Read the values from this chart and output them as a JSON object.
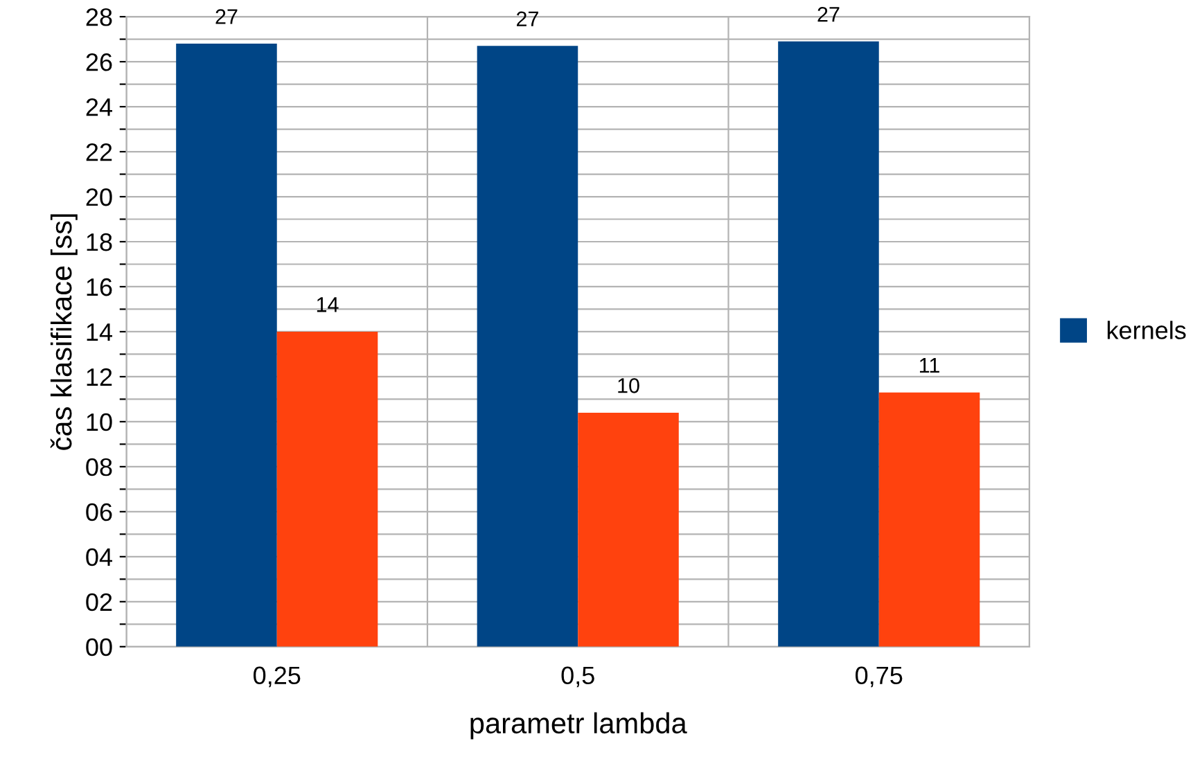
{
  "chart_data": {
    "type": "bar",
    "xlabel": "parametr lambda",
    "ylabel": "čas klasifikace [ss]",
    "categories": [
      "0,25",
      "0,5",
      "0,75"
    ],
    "series": [
      {
        "name": "kernels",
        "color": "#004586",
        "values": [
          26.8,
          26.7,
          26.9
        ],
        "value_labels": [
          "27",
          "27",
          "27"
        ]
      },
      {
        "color": "#ff420e",
        "values": [
          14.0,
          10.4,
          11.3
        ],
        "value_labels": [
          "14",
          "10",
          "11"
        ]
      }
    ],
    "ylim": [
      0,
      28
    ],
    "yticks": [
      {
        "value": 0,
        "label": "00"
      },
      {
        "value": 1,
        "label": null
      },
      {
        "value": 2,
        "label": "02"
      },
      {
        "value": 3,
        "label": null
      },
      {
        "value": 4,
        "label": "04"
      },
      {
        "value": 5,
        "label": null
      },
      {
        "value": 6,
        "label": "06"
      },
      {
        "value": 7,
        "label": null
      },
      {
        "value": 8,
        "label": "08"
      },
      {
        "value": 9,
        "label": null
      },
      {
        "value": 10,
        "label": "10"
      },
      {
        "value": 11,
        "label": null
      },
      {
        "value": 12,
        "label": "12"
      },
      {
        "value": 13,
        "label": null
      },
      {
        "value": 14,
        "label": "14"
      },
      {
        "value": 15,
        "label": null
      },
      {
        "value": 16,
        "label": "16"
      },
      {
        "value": 17,
        "label": null
      },
      {
        "value": 18,
        "label": "18"
      },
      {
        "value": 19,
        "label": null
      },
      {
        "value": 20,
        "label": "20"
      },
      {
        "value": 21,
        "label": null
      },
      {
        "value": 22,
        "label": "22"
      },
      {
        "value": 23,
        "label": null
      },
      {
        "value": 24,
        "label": "24"
      },
      {
        "value": 25,
        "label": null
      },
      {
        "value": 26,
        "label": "26"
      },
      {
        "value": 27,
        "label": null
      },
      {
        "value": 28,
        "label": "28"
      }
    ],
    "grid": "y",
    "legend": "right"
  }
}
